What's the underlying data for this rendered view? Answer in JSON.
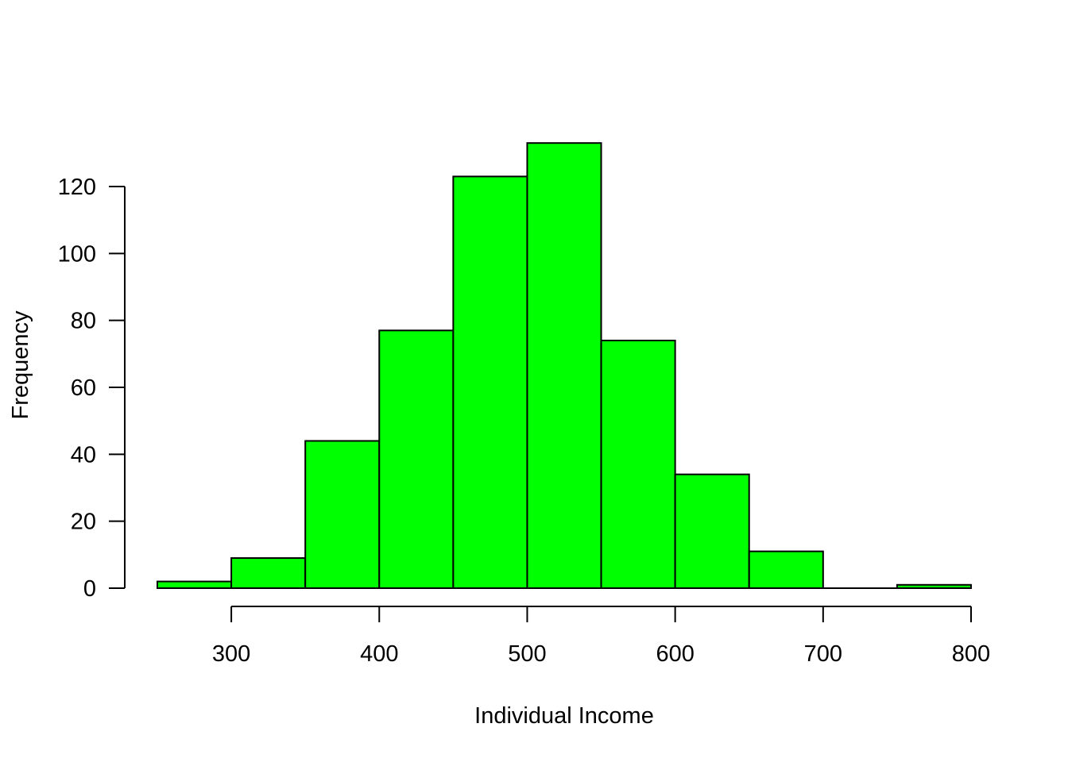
{
  "chart_data": {
    "type": "bar",
    "subtype": "histogram",
    "title": "",
    "xlabel": "Individual Income",
    "ylabel": "Frequency",
    "bins": [
      {
        "start": 250,
        "end": 300,
        "count": 2
      },
      {
        "start": 300,
        "end": 350,
        "count": 9
      },
      {
        "start": 350,
        "end": 400,
        "count": 44
      },
      {
        "start": 400,
        "end": 450,
        "count": 77
      },
      {
        "start": 450,
        "end": 500,
        "count": 123
      },
      {
        "start": 500,
        "end": 550,
        "count": 133
      },
      {
        "start": 550,
        "end": 600,
        "count": 74
      },
      {
        "start": 600,
        "end": 650,
        "count": 34
      },
      {
        "start": 650,
        "end": 700,
        "count": 11
      },
      {
        "start": 700,
        "end": 750,
        "count": 0
      },
      {
        "start": 750,
        "end": 800,
        "count": 1
      }
    ],
    "x_ticks": [
      "300",
      "400",
      "500",
      "600",
      "700",
      "800"
    ],
    "y_ticks": [
      "0",
      "20",
      "40",
      "60",
      "80",
      "100",
      "120"
    ],
    "xlim": [
      250,
      800
    ],
    "ylim": [
      0,
      133
    ],
    "grid": false,
    "legend": "none",
    "bar_color": "#00ff00",
    "edge_color": "#000000"
  }
}
